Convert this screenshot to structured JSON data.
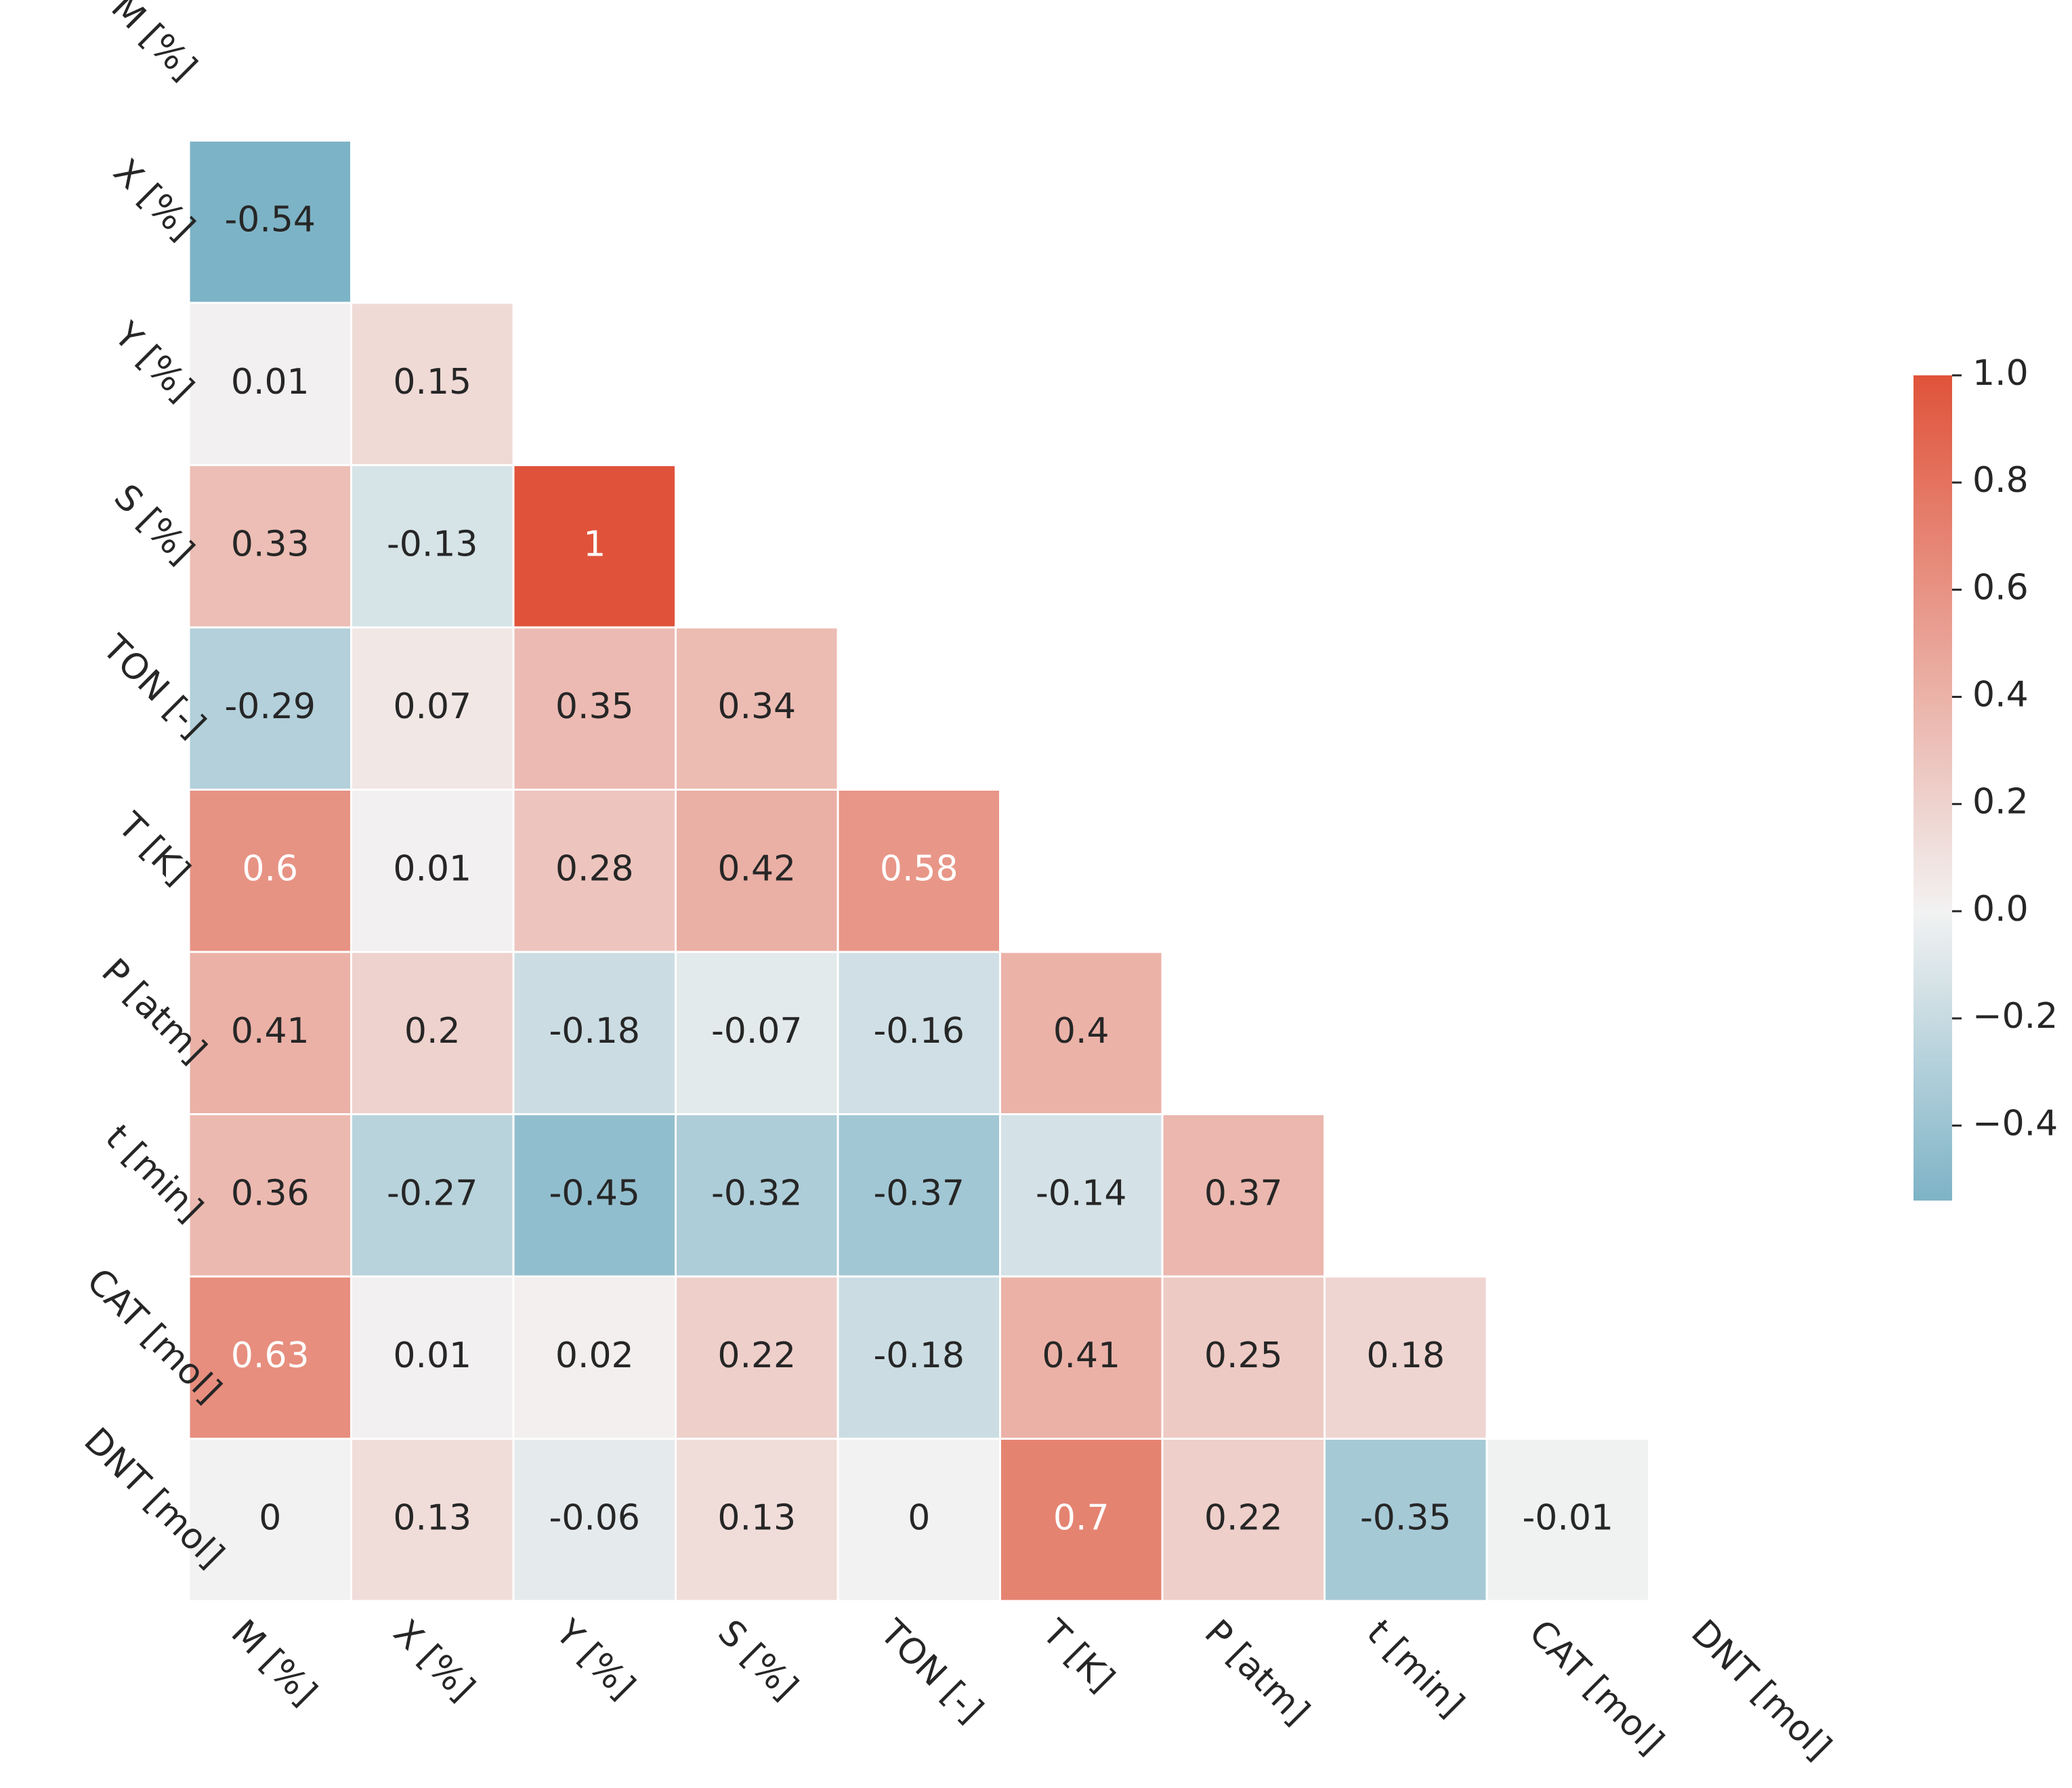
{
  "chart_data": {
    "type": "heatmap",
    "row_labels": [
      "M [%]",
      "X [%]",
      "Y [%]",
      "S [%]",
      "TON [-]",
      "T [K]",
      "P [atm]",
      "t [min]",
      "CAT [mol]",
      "DNT [mol]"
    ],
    "col_labels": [
      "M [%]",
      "X [%]",
      "Y [%]",
      "S [%]",
      "TON [-]",
      "T [K]",
      "P [atm]",
      "t [min]",
      "CAT [mol]",
      "DNT [mol]"
    ],
    "values": [
      [
        null,
        null,
        null,
        null,
        null,
        null,
        null,
        null,
        null,
        null
      ],
      [
        -0.54,
        null,
        null,
        null,
        null,
        null,
        null,
        null,
        null,
        null
      ],
      [
        0.01,
        0.15,
        null,
        null,
        null,
        null,
        null,
        null,
        null,
        null
      ],
      [
        0.33,
        -0.13,
        1,
        null,
        null,
        null,
        null,
        null,
        null,
        null
      ],
      [
        -0.29,
        0.07,
        0.35,
        0.34,
        null,
        null,
        null,
        null,
        null,
        null
      ],
      [
        0.6,
        0.01,
        0.28,
        0.42,
        0.58,
        null,
        null,
        null,
        null,
        null
      ],
      [
        0.41,
        0.2,
        -0.18,
        -0.07,
        -0.16,
        0.4,
        null,
        null,
        null,
        null
      ],
      [
        0.36,
        -0.27,
        -0.45,
        -0.32,
        -0.37,
        -0.14,
        0.37,
        null,
        null,
        null
      ],
      [
        0.63,
        0.01,
        0.02,
        0.22,
        -0.18,
        0.41,
        0.25,
        0.18,
        null,
        null
      ],
      [
        0,
        0.13,
        -0.06,
        0.13,
        0,
        0.7,
        0.22,
        -0.35,
        -0.01,
        null
      ]
    ],
    "cmap": {
      "negative": "#1a7ea1",
      "center": "#f2f2f2",
      "positive": "#e0533a"
    },
    "colorbar_lim": [
      -0.54,
      1
    ],
    "colorbar_ticks": [
      {
        "value": 1,
        "label": "1.0"
      },
      0.8,
      0.6,
      0.4,
      0.2,
      {
        "value": 0,
        "label": "0.0"
      },
      {
        "value": -0.2,
        "label": "−0.2"
      },
      {
        "value": -0.4,
        "label": "−0.4"
      }
    ]
  }
}
